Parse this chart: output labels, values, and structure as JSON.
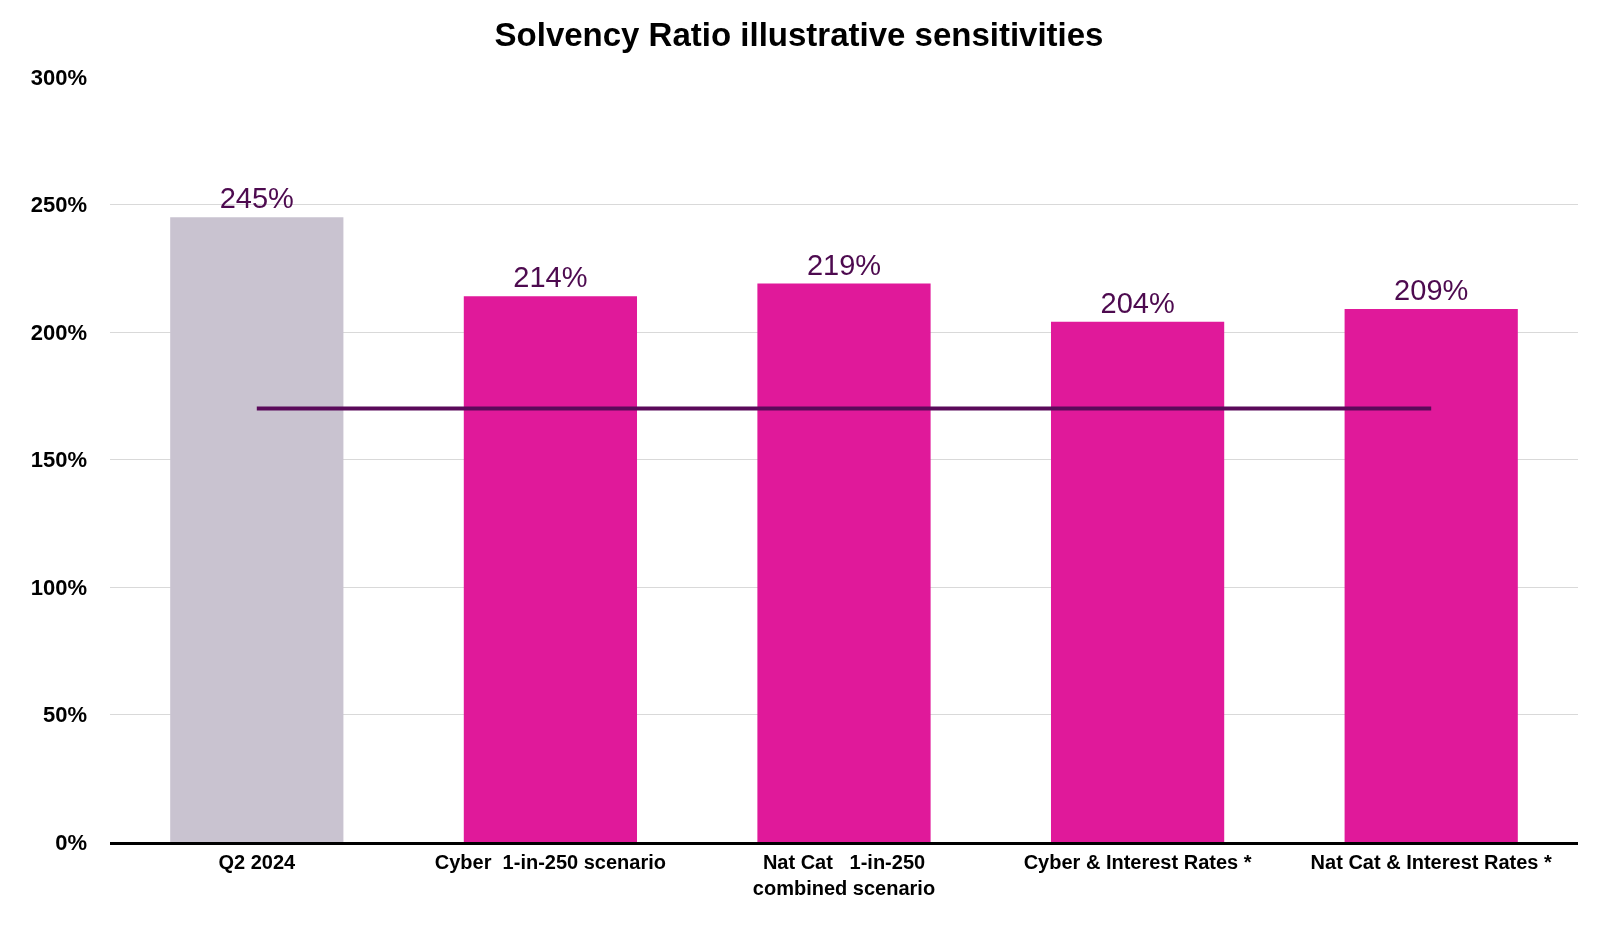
{
  "chart_data": {
    "type": "bar",
    "title": "Solvency Ratio illustrative sensitivities",
    "categories": [
      "Q2 2024",
      "Cyber  1-in-250 scenario",
      "Nat Cat   1-in-250\ncombined scenario",
      "Cyber & Interest Rates *",
      "Nat Cat & Interest Rates *"
    ],
    "series": [
      {
        "colors": [
          "#c9c3d0",
          "#e0199a",
          "#e0199a",
          "#e0199a",
          "#e0199a"
        ],
        "values": [
          245,
          214,
          219,
          204,
          209
        ],
        "value_labels": [
          "245%",
          "214%",
          "219%",
          "204%",
          "209%"
        ]
      },
      {
        "type": "line",
        "color": "#5a0a5a",
        "values": [
          170,
          170,
          170,
          170,
          170
        ],
        "line_style": "solid",
        "marker": "none"
      }
    ],
    "ylim": [
      0,
      300
    ],
    "yticks": [
      {
        "value": 0,
        "label": "0%"
      },
      {
        "value": 50,
        "label": "50%"
      },
      {
        "value": 100,
        "label": "100%"
      },
      {
        "value": 150,
        "label": "150%"
      },
      {
        "value": 200,
        "label": "200%"
      },
      {
        "value": 250,
        "label": "250%"
      },
      {
        "value": 300,
        "label": "300%"
      }
    ],
    "grid": "y"
  }
}
